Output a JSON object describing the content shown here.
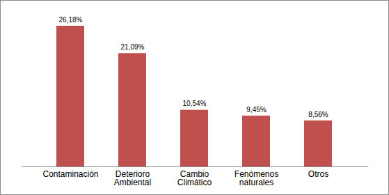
{
  "chart_data": {
    "type": "bar",
    "categories": [
      "Contaminación",
      "Deterioro Ambiental",
      "Cambio Climático",
      "Fenómenos naturales",
      "Otros"
    ],
    "values": [
      26.18,
      21.09,
      10.54,
      9.45,
      8.56
    ],
    "value_labels": [
      "26,18%",
      "21,09%",
      "10,54%",
      "9,45%",
      "8,56%"
    ],
    "color": "#c0504d",
    "data_labels": true,
    "tick_labels": "x"
  }
}
